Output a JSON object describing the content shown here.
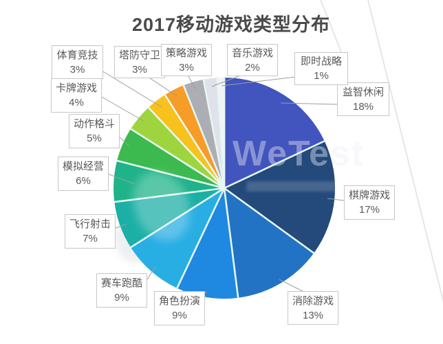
{
  "title": "2017移动游戏类型分布",
  "watermark": "WeTest",
  "colors": {
    "background": "#ffffff",
    "title_text": "#4a4a4a",
    "label_text": "#595959",
    "label_border": "#c6c6c6",
    "leader_line": "#9e9e9e",
    "slice_separator": "#e6f7f2",
    "diagonal_watermark_line": "#e6e6e6"
  },
  "chart_data": {
    "type": "pie",
    "title": "2017移动游戏类型分布",
    "start_angle_deg": 0,
    "direction": "clockwise",
    "legend": "none",
    "label_style": "callout-boxes",
    "slices": [
      {
        "label": "益智休闲",
        "value": 18,
        "pct_text": "18%",
        "color": "#4254BE"
      },
      {
        "label": "棋牌游戏",
        "value": 17,
        "pct_text": "17%",
        "color": "#24497B"
      },
      {
        "label": "消除游戏",
        "value": 13,
        "pct_text": "13%",
        "color": "#2373C4"
      },
      {
        "label": "角色扮演",
        "value": 9,
        "pct_text": "9%",
        "color": "#1F88E0"
      },
      {
        "label": "赛车跑酷",
        "value": 9,
        "pct_text": "9%",
        "color": "#28AEE3"
      },
      {
        "label": "飞行射击",
        "value": 7,
        "pct_text": "7%",
        "color": "#1BAFA6"
      },
      {
        "label": "模拟经营",
        "value": 6,
        "pct_text": "6%",
        "color": "#1FB38A"
      },
      {
        "label": "动作格斗",
        "value": 5,
        "pct_text": "5%",
        "color": "#3CB94F"
      },
      {
        "label": "卡牌游戏",
        "value": 4,
        "pct_text": "4%",
        "color": "#9ED53F"
      },
      {
        "label": "体育竞技",
        "value": 3,
        "pct_text": "3%",
        "color": "#F8C21D"
      },
      {
        "label": "塔防守卫",
        "value": 3,
        "pct_text": "3%",
        "color": "#F69C27"
      },
      {
        "label": "策略游戏",
        "value": 3,
        "pct_text": "3%",
        "color": "#ACAEB4"
      },
      {
        "label": "音乐游戏",
        "value": 2,
        "pct_text": "2%",
        "color": "#DFE2EA"
      },
      {
        "label": "即时战略",
        "value": 1,
        "pct_text": "1%",
        "color": "#F2F3F7"
      }
    ]
  }
}
